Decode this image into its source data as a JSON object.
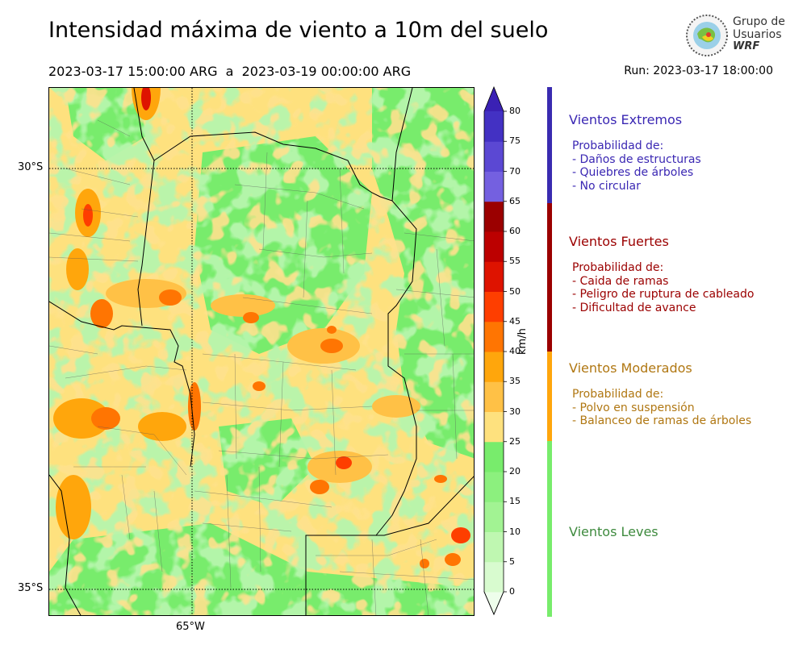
{
  "header": {
    "title": "Intensidad máxima de viento a 10m del suelo",
    "date_range": "2023-03-17 15:00:00 ARG  a  2023-03-19 00:00:00 ARG",
    "run": "Run: 2023-03-17 18:00:00"
  },
  "logo": {
    "line1": "Grupo de",
    "line2": "Usuarios",
    "line3": "WRF"
  },
  "map": {
    "lat_labels": [
      "30°S",
      "35°S"
    ],
    "lon_labels": [
      "65°W"
    ]
  },
  "colorbar": {
    "unit": "km/h",
    "ticks": [
      "0",
      "5",
      "10",
      "15",
      "20",
      "25",
      "30",
      "35",
      "40",
      "45",
      "50",
      "55",
      "60",
      "65",
      "70",
      "75",
      "80"
    ],
    "colors": [
      "#eefeeb",
      "#d8fbcf",
      "#bff7b1",
      "#a2f393",
      "#8cf07e",
      "#78ec6c",
      "#fee17e",
      "#ffc146",
      "#ffa60c",
      "#ff7502",
      "#fe3e00",
      "#de1300",
      "#bc0000",
      "#9b0000",
      "#7460e0",
      "#5b48d3",
      "#4331c3",
      "#3a21b4"
    ]
  },
  "categories": [
    {
      "title": "Vientos Extremos",
      "color": "#3a27b3",
      "lines": [
        "Probabilidad de:",
        "- Daños de estructuras",
        "- Quiebres de árboles",
        "- No circular"
      ]
    },
    {
      "title": "Vientos Fuertes",
      "color": "#9b0000",
      "lines": [
        "Probabilidad de:",
        "- Caida de ramas",
        "- Peligro de ruptura de cableado",
        "- Dificultad de avance"
      ]
    },
    {
      "title": "Vientos Moderados",
      "color": "#b07712",
      "lines": [
        "Probabilidad de:",
        "- Polvo en suspensión",
        "- Balanceo de ramas de árboles"
      ]
    },
    {
      "title": "Vientos Leves",
      "color": "#3e8a3e",
      "lines": []
    }
  ],
  "category_bar_colors": [
    "#3a2bb0",
    "#9b0000",
    "#ffa60c",
    "#78ec6c"
  ]
}
